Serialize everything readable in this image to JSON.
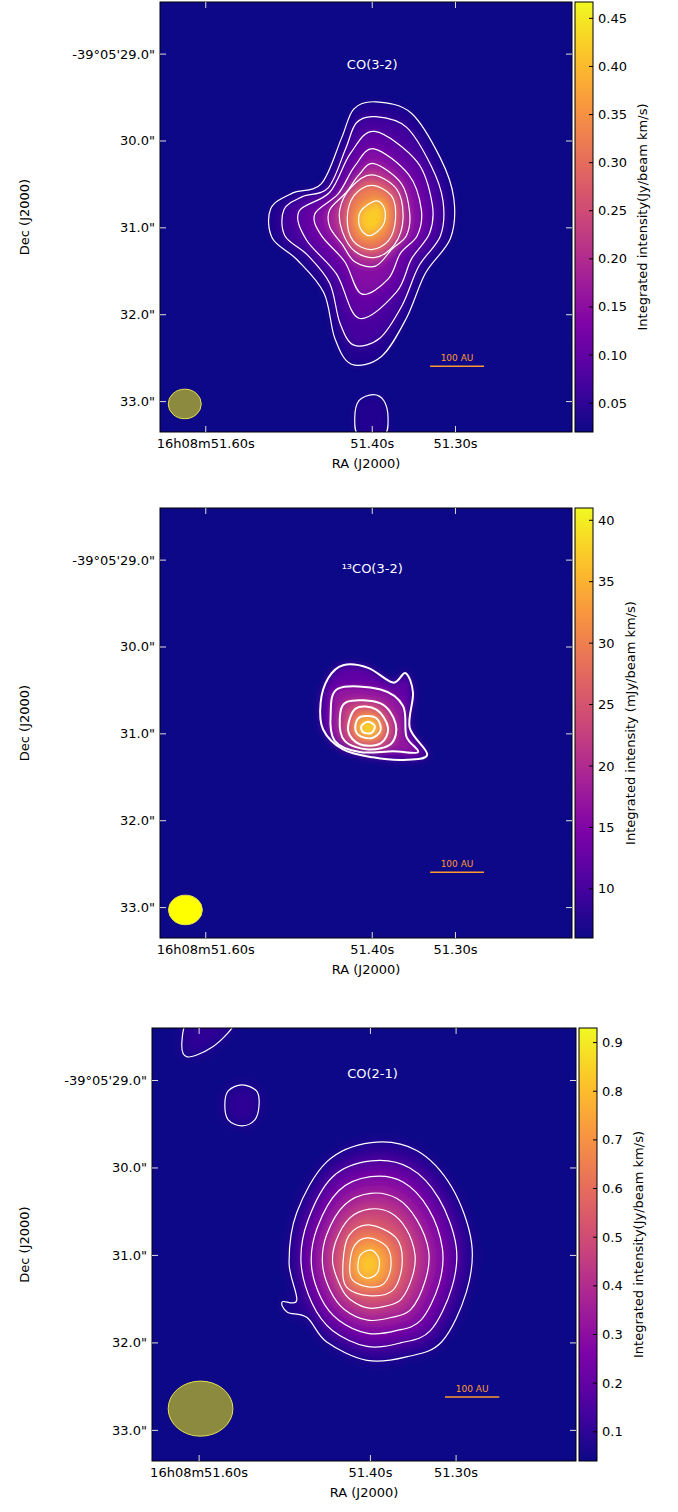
{
  "chart_data": [
    {
      "type": "contour",
      "title": "CO(3-2)",
      "xlabel": "RA (J2000)",
      "ylabel": "Dec (J2000)",
      "xlim": [
        51.655,
        51.16
      ],
      "ylim": [
        33.35,
        28.4
      ],
      "xticks": [
        {
          "value": 51.6,
          "label": "16h08m51.60s"
        },
        {
          "value": 51.4,
          "label": "51.40s"
        },
        {
          "value": 51.3,
          "label": "51.30s"
        }
      ],
      "yticks": [
        {
          "value": 29,
          "label": "-39°05'29.0\""
        },
        {
          "value": 30,
          "label": "30.0\""
        },
        {
          "value": 31,
          "label": "31.0\""
        },
        {
          "value": 32,
          "label": "32.0\""
        },
        {
          "value": 33,
          "label": "33.0\""
        }
      ],
      "colorbar": {
        "label": "Integrated intensity(Jy/beam km/s)",
        "range": [
          0.02,
          0.467
        ],
        "ticks": [
          0.05,
          {
            "value": 0.1,
            "label": "0.10"
          },
          0.15,
          {
            "value": 0.2,
            "label": "0.20"
          },
          0.25,
          {
            "value": 0.3,
            "label": "0.30"
          },
          0.35,
          {
            "value": 0.4,
            "label": "0.40"
          },
          0.45
        ]
      },
      "beam": {
        "major": 0.38,
        "minor": 0.34,
        "color": "#8c8a3f"
      },
      "scale_bar": {
        "label": "100 AU",
        "length": 0.62
      },
      "contours": [
        {
          "level": 0.04,
          "ra": [
            51.395,
            51.353,
            51.318,
            51.302,
            51.306,
            51.336,
            51.359,
            51.389,
            51.425,
            51.445,
            51.458,
            51.49,
            51.52,
            51.522,
            51.496,
            51.461,
            51.437,
            51.422
          ],
          "dec": [
            29.55,
            29.68,
            30.2,
            30.66,
            31.12,
            31.52,
            32.04,
            32.48,
            32.57,
            32.27,
            31.75,
            31.37,
            31.12,
            30.78,
            30.6,
            30.49,
            29.97,
            29.63
          ]
        },
        {
          "level": 0.04,
          "ra": [
            51.399,
            51.386,
            51.381,
            51.386,
            51.416,
            51.421,
            51.416
          ],
          "dec": [
            32.92,
            32.99,
            33.19,
            33.39,
            33.39,
            33.19,
            32.99
          ]
        },
        {
          "level": 0.07,
          "ra": [
            51.396,
            51.359,
            51.329,
            51.315,
            51.318,
            51.344,
            51.364,
            51.391,
            51.422,
            51.439,
            51.451,
            51.478,
            51.505,
            51.506,
            51.484,
            51.453,
            51.432,
            51.419
          ],
          "dec": [
            29.72,
            29.84,
            30.29,
            30.69,
            31.09,
            31.44,
            31.89,
            32.27,
            32.35,
            32.09,
            31.64,
            31.31,
            31.09,
            30.79,
            30.64,
            30.54,
            30.09,
            29.79
          ]
        },
        {
          "level": 0.1,
          "ra": [
            51.397,
            51.346,
            51.328,
            51.331,
            51.353,
            51.371,
            51.416,
            51.443,
            51.479,
            51.488,
            51.451,
            51.426
          ],
          "dec": [
            29.89,
            30.24,
            30.72,
            31.06,
            31.36,
            31.74,
            32.04,
            31.53,
            31.14,
            30.81,
            30.59,
            30.14
          ]
        },
        {
          "level": 0.14,
          "ra": [
            51.398,
            51.356,
            51.341,
            51.346,
            51.366,
            51.381,
            51.413,
            51.433,
            51.461,
            51.469,
            51.441,
            51.421
          ],
          "dec": [
            30.09,
            30.39,
            30.79,
            31.09,
            31.29,
            31.59,
            31.76,
            31.39,
            31.09,
            30.84,
            30.61,
            30.29
          ]
        },
        {
          "level": 0.19,
          "ra": [
            51.398,
            51.365,
            51.355,
            51.359,
            51.376,
            51.396,
            51.421,
            51.436,
            51.451,
            51.451,
            51.431,
            51.416
          ],
          "dec": [
            30.26,
            30.49,
            30.83,
            31.09,
            31.24,
            31.44,
            31.39,
            31.19,
            30.99,
            30.79,
            30.59,
            30.39
          ]
        },
        {
          "level": 0.25,
          "ra": [
            51.401,
            51.371,
            51.363,
            51.373,
            51.396,
            51.421,
            51.436,
            51.439,
            51.426
          ],
          "dec": [
            30.39,
            30.55,
            30.89,
            31.19,
            31.34,
            31.27,
            31.04,
            30.79,
            30.54
          ]
        },
        {
          "level": 0.33,
          "ra": [
            51.401,
            51.377,
            51.372,
            51.38,
            51.401,
            51.423,
            51.43,
            51.422
          ],
          "dec": [
            30.51,
            30.63,
            30.89,
            31.14,
            31.25,
            31.15,
            30.89,
            30.63
          ]
        },
        {
          "level": 0.42,
          "ra": [
            51.395,
            51.385,
            51.387,
            51.403,
            51.415,
            51.414
          ],
          "dec": [
            30.69,
            30.79,
            30.97,
            31.09,
            30.99,
            30.81
          ]
        }
      ]
    },
    {
      "type": "contour",
      "title": "¹³CO(3-2)",
      "xlabel": "RA (J2000)",
      "ylabel": "Dec (J2000)",
      "xlim": [
        51.655,
        51.16
      ],
      "ylim": [
        33.35,
        28.4
      ],
      "xticks": [
        {
          "value": 51.6,
          "label": "16h08m51.60s"
        },
        {
          "value": 51.4,
          "label": "51.40s"
        },
        {
          "value": 51.3,
          "label": "51.30s"
        }
      ],
      "yticks": [
        {
          "value": 29,
          "label": "-39°05'29.0\""
        },
        {
          "value": 30,
          "label": "30.0\""
        },
        {
          "value": 31,
          "label": "31.0\""
        },
        {
          "value": 32,
          "label": "32.0\""
        },
        {
          "value": 33,
          "label": "33.0\""
        }
      ],
      "colorbar": {
        "label": "Integrated intensity (mJy/beam km/s)",
        "range": [
          6,
          41
        ],
        "ticks": [
          10,
          15,
          20,
          25,
          30,
          35,
          40
        ]
      },
      "beam": {
        "major": 0.39,
        "minor": 0.34,
        "color": "#ffff00"
      },
      "scale_bar": {
        "label": "100 AU",
        "length": 0.62
      },
      "contours": [
        {
          "level": 12,
          "ra": [
            51.435,
            51.405,
            51.375,
            51.36,
            51.351,
            51.355,
            51.334,
            51.363,
            51.399,
            51.435,
            51.459,
            51.462,
            51.453
          ],
          "dec": [
            30.21,
            30.24,
            30.41,
            30.3,
            30.53,
            30.93,
            31.24,
            31.3,
            31.27,
            31.18,
            30.95,
            30.64,
            30.36
          ]
        },
        {
          "level": 17,
          "ra": [
            51.441,
            51.39,
            51.363,
            51.359,
            51.345,
            51.375,
            51.415,
            51.445,
            51.45
          ],
          "dec": [
            30.48,
            30.49,
            30.68,
            31.03,
            31.21,
            31.2,
            31.21,
            31.08,
            30.78
          ]
        },
        {
          "level": 22,
          "ra": [
            51.43,
            51.39,
            51.372,
            51.377,
            51.405,
            51.433,
            51.439
          ],
          "dec": [
            30.63,
            30.65,
            30.88,
            31.11,
            31.18,
            31.08,
            30.83
          ]
        },
        {
          "level": 28,
          "ra": [
            51.42,
            51.395,
            51.381,
            51.39,
            51.415,
            51.429
          ],
          "dec": [
            30.71,
            30.72,
            30.93,
            31.11,
            31.12,
            30.96
          ]
        },
        {
          "level": 34,
          "ra": [
            51.413,
            51.395,
            51.39,
            51.401,
            51.417,
            51.42
          ],
          "dec": [
            30.8,
            30.82,
            30.96,
            31.05,
            31.01,
            30.89
          ]
        },
        {
          "level": 39,
          "ra": [
            51.405,
            51.397,
            51.401,
            51.411,
            51.413
          ],
          "dec": [
            30.86,
            30.91,
            30.99,
            30.98,
            30.91
          ]
        }
      ]
    },
    {
      "type": "contour",
      "title": "CO(2-1)",
      "xlabel": "RA (J2000)",
      "ylabel": "Dec (J2000)",
      "xlim": [
        51.655,
        51.16
      ],
      "ylim": [
        33.35,
        28.4
      ],
      "xticks": [
        {
          "value": 51.6,
          "label": "16h08m51.60s"
        },
        {
          "value": 51.4,
          "label": "51.40s"
        },
        {
          "value": 51.3,
          "label": "51.30s"
        }
      ],
      "yticks": [
        {
          "value": 29,
          "label": "-39°05'29.0\""
        },
        {
          "value": 30,
          "label": "30.0\""
        },
        {
          "value": 31,
          "label": "31.0\""
        },
        {
          "value": 32,
          "label": "32.0\""
        },
        {
          "value": 33,
          "label": "33.0\""
        }
      ],
      "colorbar": {
        "label": "Integrated intensity(Jy/beam km/s)",
        "range": [
          0.04,
          0.93
        ],
        "ticks": [
          0.1,
          0.2,
          0.3,
          0.4,
          0.5,
          0.6,
          0.7,
          0.8,
          0.9
        ]
      },
      "beam": {
        "major": 0.74,
        "minor": 0.63,
        "color": "#8c8a3f"
      },
      "scale_bar": {
        "label": "100 AU",
        "length": 0.62
      },
      "contours": [
        {
          "level": 0.1,
          "ra": [
            51.399,
            51.346,
            51.305,
            51.282,
            51.288,
            51.317,
            51.358,
            51.404,
            51.451,
            51.474,
            51.497,
            51.503,
            51.486,
            51.495,
            51.486,
            51.451
          ],
          "dec": [
            29.71,
            29.8,
            30.22,
            30.85,
            31.42,
            31.99,
            32.16,
            32.2,
            31.99,
            31.71,
            31.65,
            31.53,
            31.51,
            31.08,
            30.51,
            29.93
          ]
        },
        {
          "level": 0.1,
          "ra": [
            51.55,
            51.533,
            51.53,
            51.535,
            51.55,
            51.566,
            51.57,
            51.566
          ],
          "dec": [
            29.05,
            29.12,
            29.28,
            29.45,
            29.52,
            29.45,
            29.28,
            29.12
          ]
        },
        {
          "level": 0.1,
          "ra": [
            51.614,
            51.585,
            51.561,
            51.565,
            51.61,
            51.62
          ],
          "dec": [
            28.73,
            28.62,
            28.39,
            28.3,
            28.3,
            28.55
          ]
        },
        {
          "level": 0.2,
          "ra": [
            51.399,
            51.354,
            51.32,
            51.3,
            51.305,
            51.33,
            51.365,
            51.404,
            51.444,
            51.468,
            51.481,
            51.473,
            51.444
          ],
          "dec": [
            29.92,
            30,
            30.35,
            30.89,
            31.37,
            31.86,
            32,
            32.04,
            31.86,
            31.55,
            31.08,
            30.6,
            30.1
          ]
        },
        {
          "level": 0.3,
          "ra": [
            51.4,
            51.362,
            51.332,
            51.316,
            51.32,
            51.341,
            51.37,
            51.403,
            51.437,
            51.458,
            51.469,
            51.462,
            51.437
          ],
          "dec": [
            30.1,
            30.16,
            30.47,
            30.92,
            31.33,
            31.74,
            31.86,
            31.89,
            31.74,
            31.48,
            31.09,
            30.68,
            30.26
          ]
        },
        {
          "level": 0.4,
          "ra": [
            51.4,
            51.369,
            51.346,
            51.332,
            51.336,
            51.353,
            51.376,
            51.403,
            51.43,
            51.447,
            51.456,
            51.451,
            51.43
          ],
          "dec": [
            30.29,
            30.35,
            30.59,
            30.95,
            31.29,
            31.62,
            31.71,
            31.74,
            31.62,
            31.4,
            31.09,
            30.76,
            30.42
          ]
        },
        {
          "level": 0.5,
          "ra": [
            51.401,
            51.377,
            51.358,
            51.348,
            51.351,
            51.364,
            51.382,
            51.403,
            51.424,
            51.434,
            51.444,
            51.44,
            51.424
          ],
          "dec": [
            30.47,
            30.51,
            30.7,
            30.99,
            31.24,
            31.5,
            31.58,
            31.6,
            31.5,
            31.37,
            31.09,
            30.83,
            30.57
          ]
        },
        {
          "level": 0.6,
          "ra": [
            51.402,
            51.37,
            51.363,
            51.374,
            51.402,
            51.428,
            51.432,
            51.425
          ],
          "dec": [
            30.65,
            30.8,
            31.1,
            31.4,
            31.46,
            31.36,
            31.09,
            30.77
          ]
        },
        {
          "level": 0.72,
          "ra": [
            51.402,
            51.381,
            51.376,
            51.384,
            51.402,
            51.421,
            51.424,
            51.418
          ],
          "dec": [
            30.8,
            30.9,
            31.12,
            31.32,
            31.36,
            31.28,
            31.1,
            30.88
          ]
        },
        {
          "level": 0.84,
          "ra": [
            51.399,
            51.39,
            51.392,
            51.404,
            51.414,
            51.412
          ],
          "dec": [
            30.94,
            31.04,
            31.2,
            31.26,
            31.18,
            31.0
          ]
        }
      ]
    }
  ]
}
